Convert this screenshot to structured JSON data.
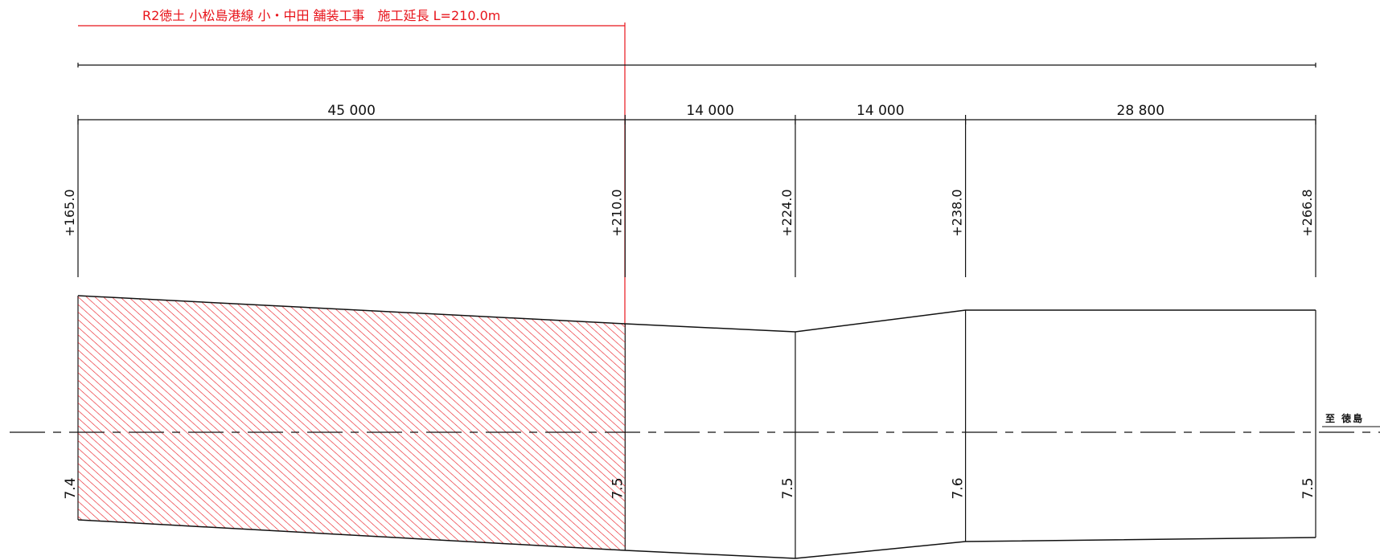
{
  "drawing": {
    "construction_label": "R2徳土 小松島港線 小・中田 舗装工事　施工延長 L=210.0m",
    "direction_label": "至 徳島",
    "dimensions": [
      {
        "label": "45 000",
        "from_sta": 165.0,
        "to_sta": 210.0
      },
      {
        "label": "14 000",
        "from_sta": 210.0,
        "to_sta": 224.0
      },
      {
        "label": "14 000",
        "from_sta": 224.0,
        "to_sta": 238.0
      },
      {
        "label": "28 800",
        "from_sta": 238.0,
        "to_sta": 266.8
      }
    ],
    "stations": [
      {
        "label": "+165.0",
        "value": 165.0
      },
      {
        "label": "+210.0",
        "value": 210.0
      },
      {
        "label": "+224.0",
        "value": 224.0
      },
      {
        "label": "+238.0",
        "value": 238.0
      },
      {
        "label": "+266.8",
        "value": 266.8
      }
    ],
    "widths": [
      {
        "label": "7.4",
        "sta": 165.0
      },
      {
        "label": "7.5",
        "sta": 210.0
      },
      {
        "label": "7.5",
        "sta": 224.0
      },
      {
        "label": "7.6",
        "sta": 238.0
      },
      {
        "label": "7.5",
        "sta": 266.8
      }
    ],
    "hatched_range": [
      165.0,
      210.0
    ],
    "colors": {
      "line": "#111111",
      "accent": "#e8141b",
      "hatch": "#e8141b"
    }
  }
}
